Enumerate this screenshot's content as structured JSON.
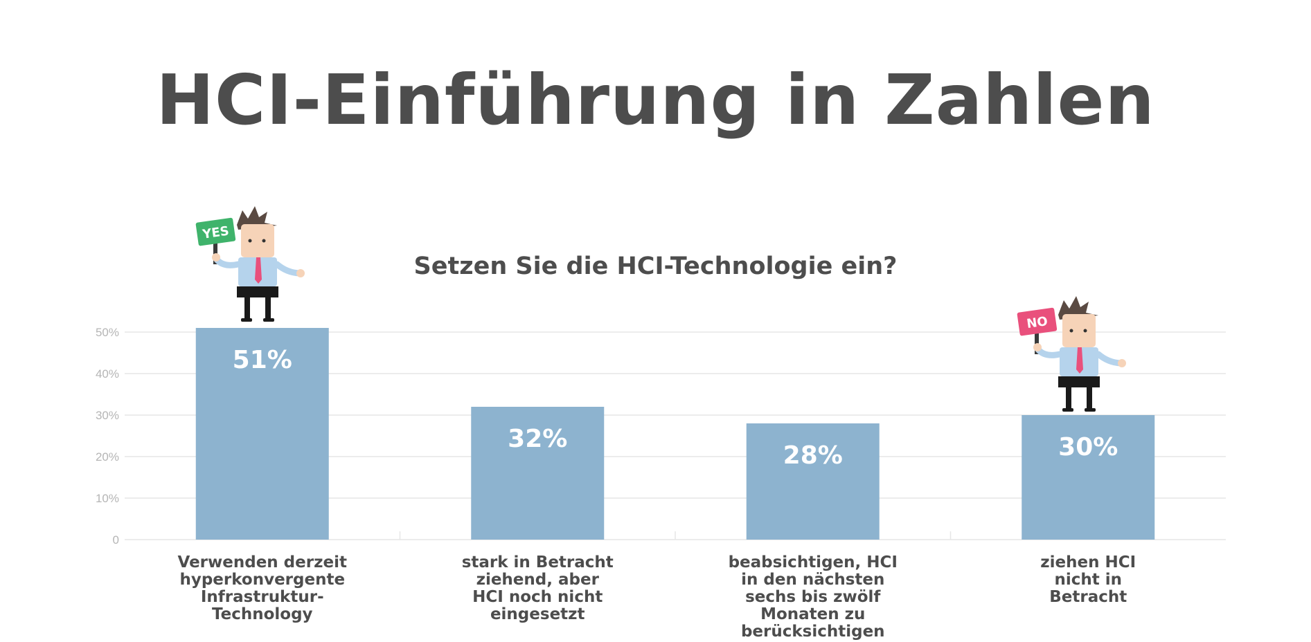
{
  "page": {
    "title": "HCI-Einführung in Zahlen"
  },
  "figures": [
    {
      "sign_text": "YES",
      "sign_color": "#3fb36b"
    },
    {
      "sign_text": "NO",
      "sign_color": "#e9507c"
    }
  ],
  "colors": {
    "bar": "#8db3cf",
    "bar_label": "#ffffff",
    "grid": "#e6e6e6",
    "tick": "#b5b5b5",
    "category": "#4d4d4d"
  },
  "chart_data": {
    "type": "bar",
    "title": "Setzen Sie die HCI-Technologie ein?",
    "xlabel": "",
    "ylabel": "",
    "ylim": [
      0,
      50
    ],
    "yticks": [
      0,
      10,
      20,
      30,
      40,
      50
    ],
    "ytick_labels": [
      "0",
      "10%",
      "20%",
      "30%",
      "40%",
      "50%"
    ],
    "grid": true,
    "categories": [
      [
        "Verwenden derzeit",
        "hyperkonvergente",
        "Infrastruktur-",
        "Technology"
      ],
      [
        "stark in Betracht",
        "ziehend, aber",
        "HCI noch nicht",
        "eingesetzt"
      ],
      [
        "beabsichtigen, HCI",
        "in den nächsten",
        "sechs bis zwölf",
        "Monaten zu",
        "berücksichtigen"
      ],
      [
        "ziehen HCI",
        "nicht in",
        "Betracht"
      ]
    ],
    "values": [
      51,
      32,
      28,
      30
    ],
    "data_labels": [
      "51%",
      "32%",
      "28%",
      "30%"
    ]
  }
}
